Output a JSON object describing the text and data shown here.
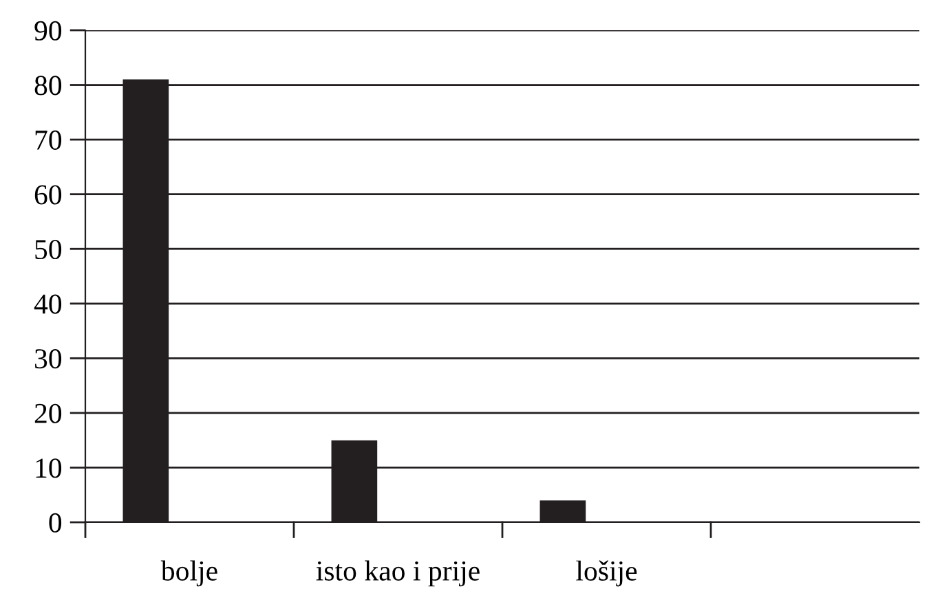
{
  "chart_data": {
    "type": "bar",
    "categories": [
      "bolje",
      "isto kao i prije",
      "lošije",
      null
    ],
    "values": [
      81,
      15,
      4,
      null
    ],
    "color": "#231f20",
    "ylim": [
      0,
      90
    ],
    "yticks": [
      0,
      10,
      20,
      30,
      40,
      50,
      60,
      70,
      80,
      90
    ],
    "grid": "y"
  }
}
